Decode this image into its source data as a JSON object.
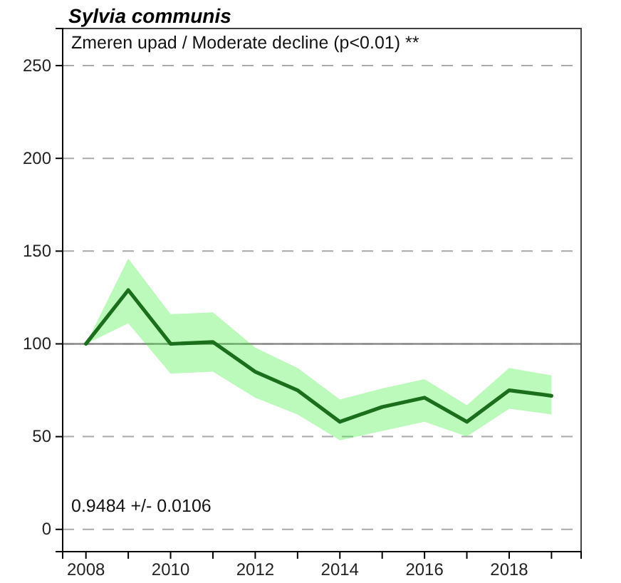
{
  "chart_data": {
    "type": "line",
    "title": "Sylvia communis",
    "annotations": [
      "Zmeren upad / Moderate decline (p<0.01) **",
      "0.9484 +/- 0.0106"
    ],
    "x": [
      2008,
      2009,
      2010,
      2011,
      2012,
      2013,
      2014,
      2015,
      2016,
      2017,
      2018,
      2019
    ],
    "series": [
      {
        "color": "#1b6e1b",
        "values": [
          100,
          129,
          100,
          101,
          85,
          75,
          58,
          66,
          71,
          58,
          75,
          72
        ],
        "lower": [
          100,
          111,
          84,
          85,
          71,
          62,
          48,
          53,
          58,
          50,
          65,
          62
        ],
        "upper": [
          100,
          146,
          116,
          117,
          98,
          87,
          70,
          76,
          81,
          67,
          87,
          83
        ]
      }
    ],
    "xlim": [
      2007.45,
      2019.7
    ],
    "xticks": [
      2008,
      {
        "value": 2009,
        "label": null
      },
      2010,
      {
        "value": 2011,
        "label": null
      },
      2012,
      {
        "value": 2013,
        "label": null
      },
      2014,
      {
        "value": 2015,
        "label": null
      },
      2016,
      {
        "value": 2017,
        "label": null
      },
      2018,
      {
        "value": 2019,
        "label": null
      }
    ],
    "ylim": [
      -12,
      270
    ],
    "yticks": [
      0,
      50,
      100,
      150,
      200,
      250
    ],
    "grid": "y",
    "line_style": "solid",
    "ref_lines": [
      {
        "axis": "y",
        "value": 100,
        "color": "#888888"
      }
    ]
  }
}
